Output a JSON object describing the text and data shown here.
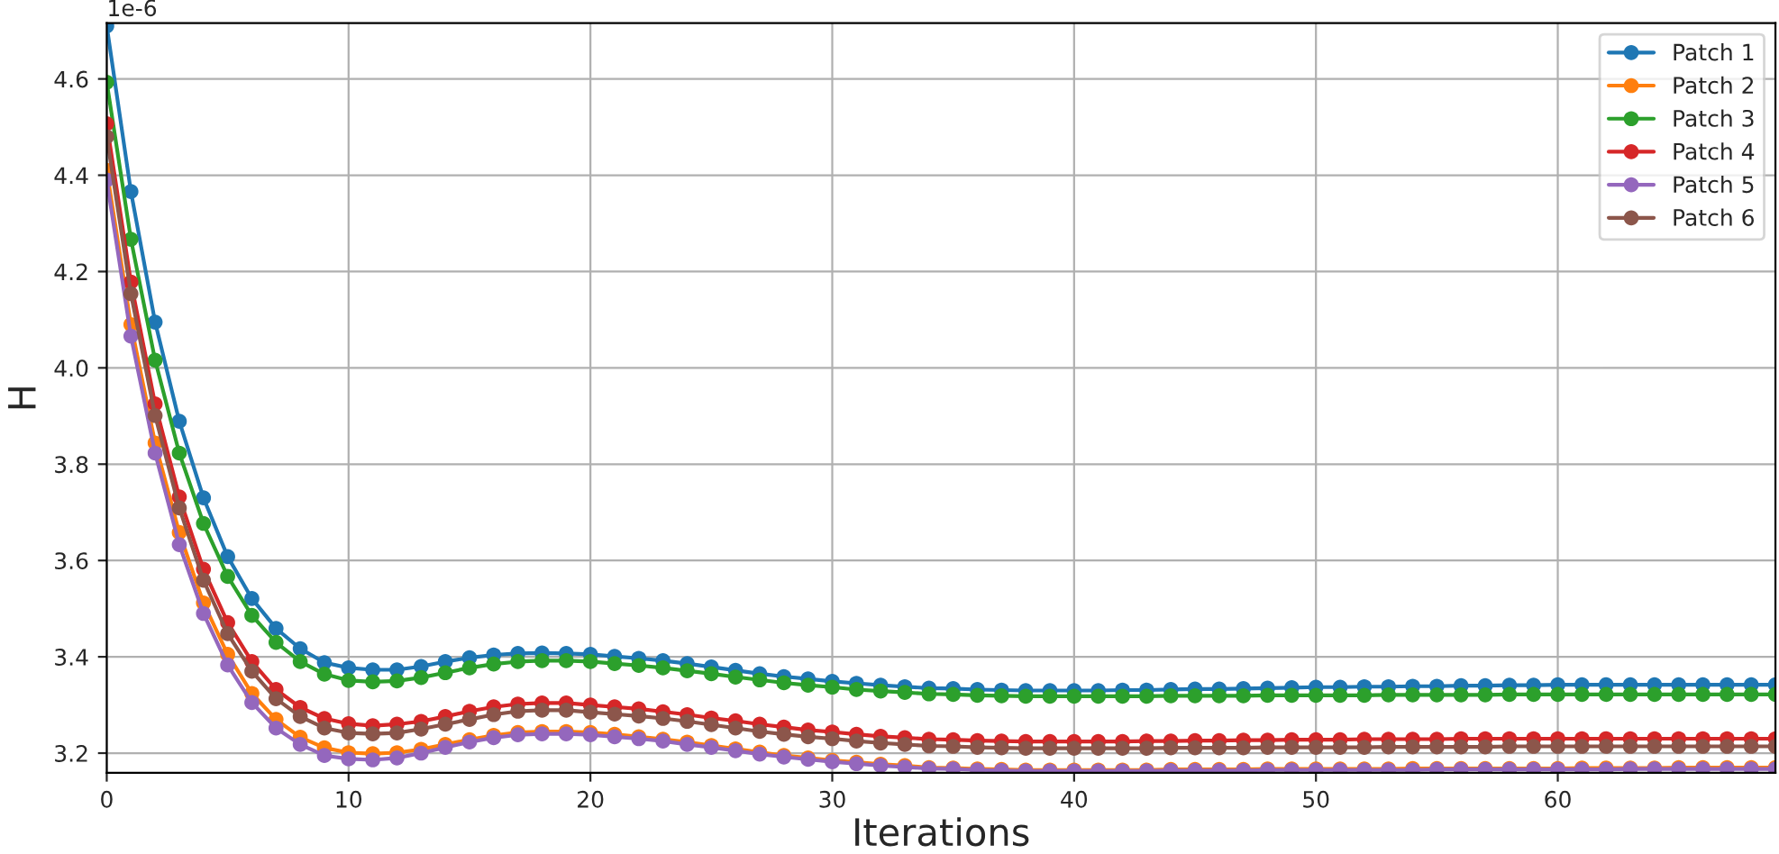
{
  "chart_data": {
    "type": "line",
    "xlabel": "Iterations",
    "ylabel": "H",
    "annotations": [
      "1e-6"
    ],
    "x": [
      0,
      1,
      2,
      3,
      4,
      5,
      6,
      7,
      8,
      9,
      10,
      11,
      12,
      13,
      14,
      15,
      16,
      17,
      18,
      19,
      20,
      21,
      22,
      23,
      24,
      25,
      26,
      27,
      28,
      29,
      30,
      31,
      32,
      33,
      34,
      35,
      36,
      37,
      38,
      39,
      40,
      41,
      42,
      43,
      44,
      45,
      46,
      47,
      48,
      49,
      50,
      51,
      52,
      53,
      54,
      55,
      56,
      57,
      58,
      59,
      60,
      61,
      62,
      63,
      64,
      65,
      66,
      67,
      68,
      69
    ],
    "xlim": [
      0,
      69
    ],
    "xticks": [
      0,
      10,
      20,
      30,
      40,
      50,
      60
    ],
    "ylim": [
      3.159,
      4.716
    ],
    "yticks": [
      3.2,
      3.4,
      3.6,
      3.8,
      {
        "value": 4.0,
        "label": "4.0"
      },
      4.2,
      4.4,
      4.6
    ],
    "grid": true,
    "legend": "top right",
    "marker": "circle",
    "line_style": "solid",
    "series": [
      {
        "name": "Patch 1",
        "color": "#1f77b4",
        "values": [
          4.71,
          4.366,
          4.095,
          3.889,
          3.73,
          3.608,
          3.521,
          3.459,
          3.417,
          3.388,
          3.377,
          3.373,
          3.373,
          3.38,
          3.39,
          3.398,
          3.404,
          3.407,
          3.408,
          3.407,
          3.405,
          3.401,
          3.397,
          3.392,
          3.386,
          3.379,
          3.372,
          3.365,
          3.359,
          3.354,
          3.349,
          3.345,
          3.341,
          3.338,
          3.335,
          3.334,
          3.332,
          3.331,
          3.33,
          3.33,
          3.33,
          3.33,
          3.331,
          3.331,
          3.332,
          3.333,
          3.333,
          3.334,
          3.335,
          3.336,
          3.337,
          3.337,
          3.338,
          3.338,
          3.339,
          3.339,
          3.34,
          3.34,
          3.341,
          3.341,
          3.342,
          3.342,
          3.342,
          3.342,
          3.342,
          3.342,
          3.342,
          3.342,
          3.342,
          3.342
        ]
      },
      {
        "name": "Patch 2",
        "color": "#ff7f0e",
        "values": [
          4.41,
          4.09,
          3.844,
          3.658,
          3.512,
          3.405,
          3.324,
          3.27,
          3.233,
          3.211,
          3.201,
          3.199,
          3.201,
          3.208,
          3.218,
          3.228,
          3.237,
          3.243,
          3.245,
          3.245,
          3.243,
          3.239,
          3.234,
          3.229,
          3.223,
          3.216,
          3.209,
          3.202,
          3.195,
          3.19,
          3.185,
          3.181,
          3.177,
          3.174,
          3.17,
          3.169,
          3.167,
          3.166,
          3.165,
          3.165,
          3.165,
          3.165,
          3.165,
          3.165,
          3.166,
          3.166,
          3.166,
          3.166,
          3.167,
          3.167,
          3.167,
          3.167,
          3.167,
          3.167,
          3.168,
          3.168,
          3.168,
          3.168,
          3.168,
          3.168,
          3.168,
          3.169,
          3.169,
          3.169,
          3.169,
          3.17,
          3.17,
          3.17,
          3.17,
          3.17
        ]
      },
      {
        "name": "Patch 3",
        "color": "#2ca02c",
        "values": [
          4.593,
          4.267,
          4.016,
          3.823,
          3.677,
          3.567,
          3.486,
          3.43,
          3.39,
          3.364,
          3.351,
          3.348,
          3.35,
          3.357,
          3.367,
          3.377,
          3.385,
          3.39,
          3.392,
          3.392,
          3.39,
          3.386,
          3.382,
          3.377,
          3.371,
          3.365,
          3.358,
          3.352,
          3.346,
          3.341,
          3.337,
          3.332,
          3.329,
          3.326,
          3.323,
          3.322,
          3.32,
          3.319,
          3.318,
          3.318,
          3.318,
          3.318,
          3.318,
          3.318,
          3.319,
          3.319,
          3.319,
          3.319,
          3.32,
          3.32,
          3.32,
          3.32,
          3.32,
          3.321,
          3.321,
          3.321,
          3.321,
          3.321,
          3.322,
          3.322,
          3.322,
          3.322,
          3.322,
          3.322,
          3.322,
          3.322,
          3.322,
          3.322,
          3.322,
          3.322
        ]
      },
      {
        "name": "Patch 4",
        "color": "#d62728",
        "values": [
          4.507,
          4.178,
          3.925,
          3.732,
          3.582,
          3.471,
          3.39,
          3.332,
          3.295,
          3.272,
          3.261,
          3.257,
          3.26,
          3.266,
          3.276,
          3.287,
          3.296,
          3.302,
          3.304,
          3.304,
          3.3,
          3.296,
          3.292,
          3.286,
          3.28,
          3.273,
          3.267,
          3.26,
          3.254,
          3.248,
          3.244,
          3.239,
          3.235,
          3.232,
          3.229,
          3.228,
          3.226,
          3.225,
          3.224,
          3.224,
          3.224,
          3.224,
          3.224,
          3.225,
          3.225,
          3.226,
          3.226,
          3.227,
          3.227,
          3.228,
          3.228,
          3.228,
          3.229,
          3.229,
          3.229,
          3.229,
          3.23,
          3.23,
          3.23,
          3.23,
          3.23,
          3.23,
          3.23,
          3.23,
          3.23,
          3.23,
          3.23,
          3.23,
          3.23,
          3.23
        ]
      },
      {
        "name": "Patch 5",
        "color": "#9467bd",
        "values": [
          4.39,
          4.066,
          3.823,
          3.633,
          3.49,
          3.383,
          3.305,
          3.252,
          3.218,
          3.195,
          3.188,
          3.186,
          3.19,
          3.2,
          3.212,
          3.223,
          3.232,
          3.238,
          3.24,
          3.24,
          3.238,
          3.234,
          3.23,
          3.225,
          3.218,
          3.212,
          3.205,
          3.198,
          3.192,
          3.187,
          3.182,
          3.178,
          3.174,
          3.171,
          3.168,
          3.167,
          3.165,
          3.164,
          3.163,
          3.163,
          3.163,
          3.163,
          3.163,
          3.163,
          3.164,
          3.164,
          3.164,
          3.164,
          3.165,
          3.165,
          3.165,
          3.165,
          3.165,
          3.165,
          3.165,
          3.166,
          3.166,
          3.166,
          3.166,
          3.166,
          3.166,
          3.166,
          3.166,
          3.167,
          3.167,
          3.167,
          3.167,
          3.167,
          3.167,
          3.167
        ]
      },
      {
        "name": "Patch 6",
        "color": "#8c564b",
        "values": [
          4.48,
          4.154,
          3.901,
          3.709,
          3.559,
          3.448,
          3.37,
          3.313,
          3.276,
          3.252,
          3.242,
          3.24,
          3.242,
          3.25,
          3.26,
          3.27,
          3.28,
          3.287,
          3.289,
          3.289,
          3.285,
          3.281,
          3.277,
          3.272,
          3.266,
          3.259,
          3.252,
          3.245,
          3.239,
          3.234,
          3.23,
          3.225,
          3.221,
          3.218,
          3.215,
          3.214,
          3.212,
          3.211,
          3.21,
          3.21,
          3.21,
          3.21,
          3.21,
          3.21,
          3.211,
          3.211,
          3.211,
          3.211,
          3.212,
          3.212,
          3.212,
          3.212,
          3.212,
          3.213,
          3.213,
          3.213,
          3.213,
          3.213,
          3.214,
          3.214,
          3.214,
          3.214,
          3.214,
          3.214,
          3.214,
          3.214,
          3.214,
          3.214,
          3.214,
          3.214
        ]
      }
    ]
  }
}
